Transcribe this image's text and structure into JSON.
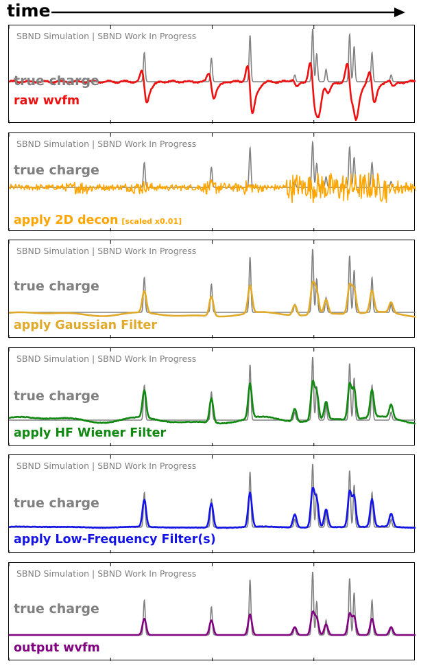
{
  "header": {
    "time_label": "time"
  },
  "watermark": "SBND Simulation | SBND Work In Progress",
  "truth_label": "true charge",
  "colors": {
    "truth": "#808080",
    "raw": "#ee1111",
    "decon": "#ffa500",
    "gauss": "#e0a92a",
    "wiener": "#118811",
    "lowfreq": "#1414e6",
    "output": "#800080",
    "axis": "#000000"
  },
  "chart_data": {
    "type": "line",
    "x_axis": "time",
    "truth_peaks": [
      {
        "t": 0.333,
        "h": 0.52
      },
      {
        "t": 0.498,
        "h": 0.42
      },
      {
        "t": 0.593,
        "h": 0.83
      },
      {
        "t": 0.703,
        "h": 0.12
      },
      {
        "t": 0.747,
        "h": 0.95
      },
      {
        "t": 0.757,
        "h": 0.5
      },
      {
        "t": 0.78,
        "h": 0.22
      },
      {
        "t": 0.838,
        "h": 0.85
      },
      {
        "t": 0.849,
        "h": 0.63
      },
      {
        "t": 0.893,
        "h": 0.52
      },
      {
        "t": 0.94,
        "h": 0.12
      }
    ],
    "panels": [
      {
        "id": "raw",
        "label": "raw wvfm",
        "note": "",
        "color_key": "raw",
        "kind": "bipolar"
      },
      {
        "id": "decon",
        "label": "apply 2D decon",
        "note": "[scaled x0.01]",
        "color_key": "decon",
        "kind": "noisy"
      },
      {
        "id": "gauss",
        "label": "apply Gaussian Filter",
        "note": "",
        "color_key": "gauss",
        "kind": "smooth"
      },
      {
        "id": "wiener",
        "label": "apply HF Wiener Filter",
        "note": "",
        "color_key": "wiener",
        "kind": "wiener"
      },
      {
        "id": "lowfreq",
        "label": "apply Low-Frequency Filter(s)",
        "note": "",
        "color_key": "lowfreq",
        "kind": "lowfreq"
      },
      {
        "id": "output",
        "label": "output wvfm",
        "note": "",
        "color_key": "output",
        "kind": "output"
      }
    ]
  }
}
